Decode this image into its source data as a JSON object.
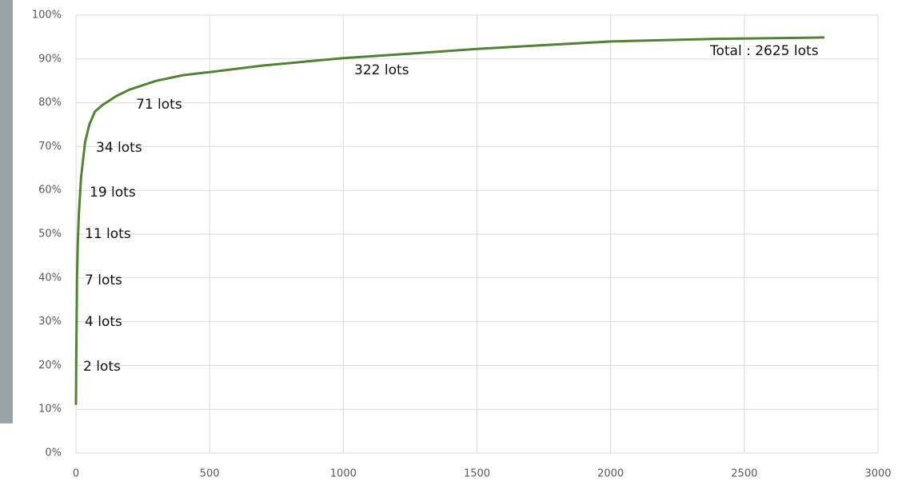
{
  "chart_data": {
    "type": "line",
    "x": [
      0,
      1,
      2,
      4,
      7,
      11,
      19,
      34,
      50,
      71,
      100,
      150,
      200,
      300,
      400,
      500,
      700,
      1000,
      1200,
      1500,
      2000,
      2400,
      2800
    ],
    "values": [
      11,
      20,
      28,
      40,
      48,
      55,
      63,
      71,
      75,
      78,
      79.5,
      81.5,
      83,
      85,
      86.3,
      87,
      88.5,
      90.2,
      91,
      92.3,
      94,
      94.6,
      94.9
    ],
    "color": "#548235",
    "xlim": [
      0,
      3000
    ],
    "xticks": [
      0,
      500,
      1000,
      1500,
      2000,
      2500,
      3000
    ],
    "ylim": [
      0,
      100
    ],
    "yticks": [
      {
        "value": 0,
        "label": "0%"
      },
      {
        "value": 10,
        "label": "10%"
      },
      {
        "value": 20,
        "label": "20%"
      },
      {
        "value": 30,
        "label": "30%"
      },
      {
        "value": 40,
        "label": "40%"
      },
      {
        "value": 50,
        "label": "50%"
      },
      {
        "value": 60,
        "label": "60%"
      },
      {
        "value": 70,
        "label": "70%"
      },
      {
        "value": 80,
        "label": "80%"
      },
      {
        "value": 90,
        "label": "90%"
      },
      {
        "value": 100,
        "label": "100%"
      }
    ],
    "grid": true,
    "annotations": [
      "2 lots",
      "4 lots",
      "7 lots",
      "11 lots",
      "19 lots",
      "34 lots",
      "71 lots",
      "322 lots",
      "Total : 2625 lots"
    ]
  }
}
